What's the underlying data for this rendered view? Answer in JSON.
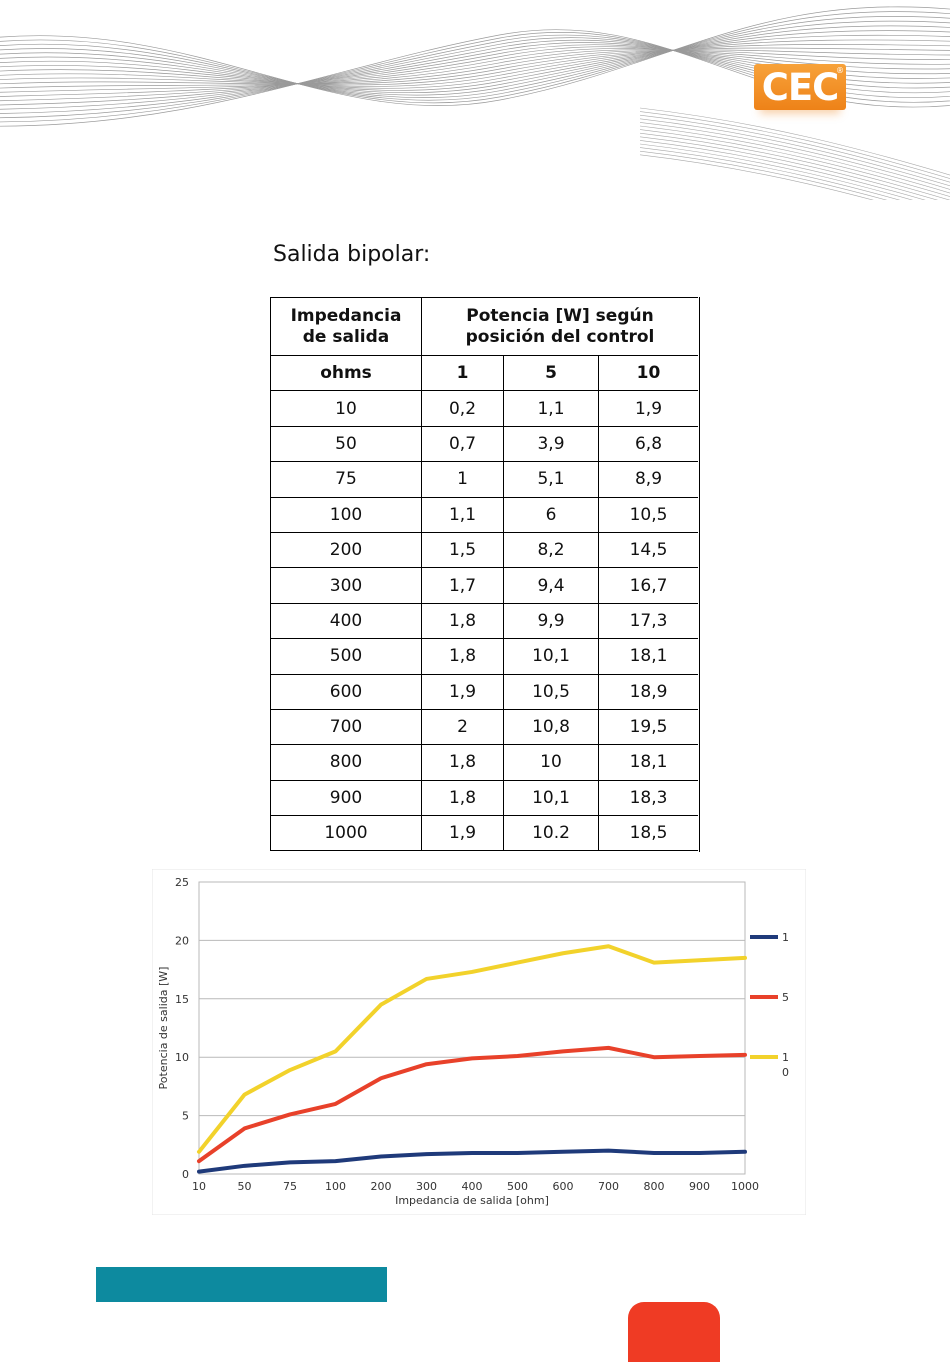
{
  "header": {
    "logo_text": "CEC",
    "logo_mark": "®",
    "logo_color": "#ee8218"
  },
  "section_title": "Salida bipolar:",
  "table": {
    "header_col0": "Impedancia de salida",
    "header_group": "Potencia [W] según posición del control",
    "subheader": [
      "ohms",
      "1",
      "5",
      "10"
    ],
    "rows": [
      [
        "10",
        "0,2",
        "1,1",
        "1,9"
      ],
      [
        "50",
        "0,7",
        "3,9",
        "6,8"
      ],
      [
        "75",
        "1",
        "5,1",
        "8,9"
      ],
      [
        "100",
        "1,1",
        "6",
        "10,5"
      ],
      [
        "200",
        "1,5",
        "8,2",
        "14,5"
      ],
      [
        "300",
        "1,7",
        "9,4",
        "16,7"
      ],
      [
        "400",
        "1,8",
        "9,9",
        "17,3"
      ],
      [
        "500",
        "1,8",
        "10,1",
        "18,1"
      ],
      [
        "600",
        "1,9",
        "10,5",
        "18,9"
      ],
      [
        "700",
        "2",
        "10,8",
        "19,5"
      ],
      [
        "800",
        "1,8",
        "10",
        "18,1"
      ],
      [
        "900",
        "1,8",
        "10,1",
        "18,3"
      ],
      [
        "1000",
        "1,9",
        "10.2",
        "18,5"
      ]
    ]
  },
  "chart_data": {
    "type": "line",
    "categories": [
      "10",
      "50",
      "75",
      "100",
      "200",
      "300",
      "400",
      "500",
      "600",
      "700",
      "800",
      "900",
      "1000"
    ],
    "series": [
      {
        "name": "1",
        "color": "#1f3a7a",
        "values": [
          0.2,
          0.7,
          1,
          1.1,
          1.5,
          1.7,
          1.8,
          1.8,
          1.9,
          2,
          1.8,
          1.8,
          1.9
        ]
      },
      {
        "name": "5",
        "color": "#e8412a",
        "values": [
          1.1,
          3.9,
          5.1,
          6,
          8.2,
          9.4,
          9.9,
          10.1,
          10.5,
          10.8,
          10,
          10.1,
          10.2
        ]
      },
      {
        "name": "1\n0",
        "color": "#f2d22b",
        "values": [
          1.9,
          6.8,
          8.9,
          10.5,
          14.5,
          16.7,
          17.3,
          18.1,
          18.9,
          19.5,
          18.1,
          18.3,
          18.5
        ]
      }
    ],
    "xlabel": "Impedancia de salida [ohm]",
    "ylabel": "Potencia de salida [W]",
    "ylim": [
      0,
      25
    ],
    "yticks": [
      "0",
      "5",
      "10",
      "15",
      "20",
      "25"
    ],
    "grid": true,
    "legend_position": "right"
  }
}
